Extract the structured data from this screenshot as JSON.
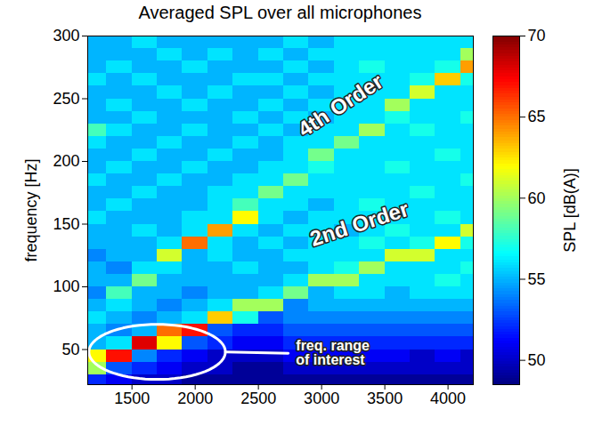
{
  "chart_data": {
    "type": "heatmap",
    "title": "Averaged SPL over all microphones",
    "y_label": "frequency [Hz]",
    "x": [
      1200,
      1400,
      1600,
      1800,
      2000,
      2200,
      2400,
      2600,
      2800,
      3000,
      3200,
      3400,
      3600,
      3800,
      4000,
      4200
    ],
    "y": [
      25,
      35,
      45,
      55,
      65,
      75,
      85,
      95,
      105,
      115,
      125,
      135,
      145,
      155,
      165,
      175,
      185,
      195,
      205,
      215,
      225,
      235,
      245,
      255,
      265,
      275,
      285,
      295
    ],
    "values": [
      [
        52,
        51,
        50,
        50,
        49,
        49,
        49,
        49,
        49,
        49,
        49,
        49,
        49,
        49,
        49,
        49
      ],
      [
        60,
        53,
        52,
        51,
        50,
        50,
        49,
        49,
        50,
        50,
        50,
        50,
        50,
        50,
        50,
        50
      ],
      [
        62,
        67,
        54,
        52,
        51,
        50,
        50,
        50,
        51,
        51,
        51,
        51,
        51,
        50,
        51,
        50
      ],
      [
        55,
        56,
        68,
        62,
        53,
        52,
        51,
        51,
        52,
        52,
        52,
        52,
        52,
        52,
        52,
        52
      ],
      [
        55,
        54,
        55,
        65,
        67,
        53,
        52,
        52,
        53,
        53,
        53,
        53,
        53,
        53,
        53,
        53
      ],
      [
        56,
        55,
        54,
        55,
        56,
        63,
        57,
        53,
        54,
        54,
        54,
        54,
        54,
        54,
        54,
        54
      ],
      [
        55,
        56,
        55,
        54,
        55,
        56,
        60,
        60,
        54,
        55,
        55,
        55,
        55,
        55,
        55,
        55
      ],
      [
        54,
        58,
        55,
        55,
        54,
        55,
        55,
        56,
        59,
        55,
        56,
        56,
        55,
        56,
        56,
        56
      ],
      [
        55,
        55,
        59,
        55,
        55,
        55,
        55,
        55,
        56,
        60,
        60,
        56,
        56,
        56,
        57,
        56
      ],
      [
        55,
        54,
        56,
        56,
        55,
        55,
        56,
        55,
        55,
        56,
        57,
        60,
        56,
        56,
        56,
        57
      ],
      [
        54,
        55,
        55,
        61,
        55,
        56,
        55,
        55,
        56,
        56,
        56,
        56,
        61,
        61,
        56,
        56
      ],
      [
        55,
        55,
        55,
        56,
        65,
        56,
        55,
        56,
        55,
        56,
        56,
        57,
        56,
        57,
        62,
        57
      ],
      [
        55,
        55,
        56,
        55,
        56,
        64,
        56,
        55,
        56,
        56,
        55,
        56,
        57,
        56,
        56,
        61
      ],
      [
        56,
        55,
        55,
        55,
        56,
        56,
        62,
        56,
        55,
        56,
        56,
        56,
        56,
        56,
        57,
        56
      ],
      [
        55,
        56,
        55,
        55,
        55,
        56,
        58,
        56,
        56,
        55,
        56,
        57,
        56,
        56,
        56,
        56
      ],
      [
        55,
        55,
        56,
        55,
        55,
        56,
        56,
        59,
        56,
        56,
        56,
        56,
        56,
        57,
        56,
        56
      ],
      [
        56,
        55,
        55,
        56,
        55,
        55,
        56,
        56,
        59,
        56,
        56,
        56,
        56,
        56,
        56,
        57
      ],
      [
        55,
        56,
        55,
        55,
        56,
        55,
        55,
        56,
        56,
        57,
        56,
        56,
        57,
        56,
        56,
        56
      ],
      [
        55,
        55,
        56,
        55,
        55,
        56,
        55,
        55,
        56,
        59,
        56,
        56,
        56,
        56,
        57,
        56
      ],
      [
        56,
        55,
        55,
        56,
        55,
        55,
        56,
        55,
        56,
        56,
        59,
        56,
        56,
        56,
        56,
        56
      ],
      [
        58,
        56,
        55,
        55,
        56,
        55,
        55,
        56,
        55,
        56,
        56,
        60,
        56,
        57,
        56,
        56
      ],
      [
        55,
        55,
        56,
        55,
        55,
        55,
        56,
        55,
        56,
        55,
        56,
        56,
        57,
        56,
        56,
        57
      ],
      [
        55,
        56,
        55,
        55,
        56,
        55,
        55,
        56,
        55,
        56,
        56,
        56,
        60,
        56,
        56,
        56
      ],
      [
        55,
        55,
        55,
        56,
        55,
        56,
        55,
        55,
        56,
        55,
        56,
        56,
        56,
        61,
        56,
        56
      ],
      [
        56,
        55,
        56,
        55,
        55,
        55,
        56,
        56,
        55,
        56,
        56,
        56,
        56,
        57,
        63,
        57
      ],
      [
        55,
        56,
        55,
        55,
        56,
        55,
        55,
        55,
        56,
        55,
        56,
        57,
        56,
        56,
        57,
        64
      ],
      [
        55,
        55,
        55,
        56,
        55,
        56,
        55,
        56,
        55,
        56,
        56,
        56,
        56,
        56,
        56,
        60
      ],
      [
        55,
        55,
        56,
        55,
        55,
        55,
        55,
        55,
        56,
        55,
        56,
        56,
        56,
        56,
        56,
        56
      ]
    ],
    "xlim": [
      1150,
      4200
    ],
    "xticks": [
      1500,
      2000,
      2500,
      3000,
      3500,
      4000
    ],
    "ylim": [
      22,
      300
    ],
    "yticks": [
      50,
      100,
      150,
      200,
      250,
      300
    ],
    "colorbar": {
      "label": "SPL [dB(A)]",
      "range": [
        48.5,
        70
      ],
      "ticks": [
        50,
        55,
        60,
        65,
        70
      ]
    },
    "annotations": [
      "4th Order",
      "2nd Order",
      "freq. range of interest"
    ]
  }
}
